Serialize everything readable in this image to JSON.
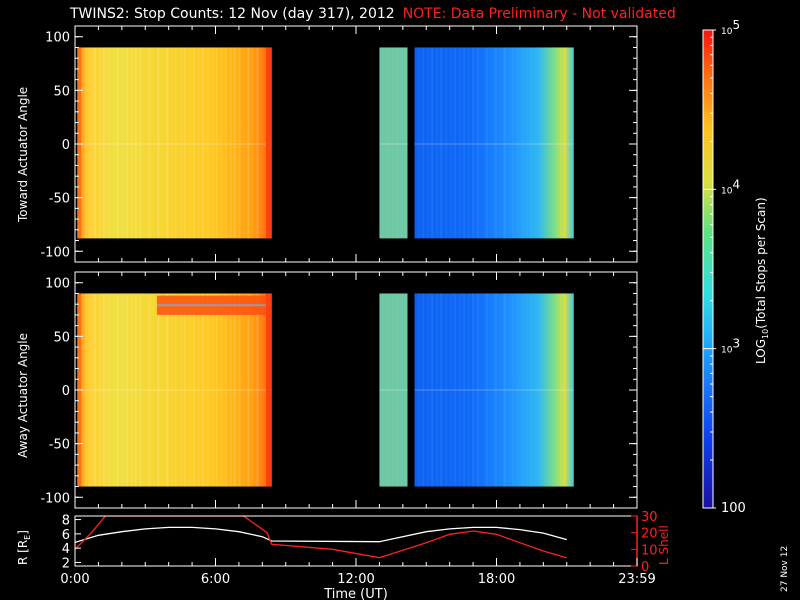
{
  "title": "TWINS2: Stop Counts: 12 Nov (day 317), 2012",
  "note": "NOTE: Data Preliminary - Not validated",
  "date_stamp": "27 Nov 12",
  "colors": {
    "background": "#000000",
    "axis": "#ffffff",
    "note": "#ff2020",
    "r_line": "#ffffff",
    "lshell_line": "#ff2020"
  },
  "chart_data": [
    {
      "type": "heatmap",
      "panel": "top",
      "ylabel": "Toward Actuator Angle",
      "ylim": [
        -110,
        110
      ],
      "yticks": [
        100,
        50,
        0,
        -50,
        -100
      ],
      "xlim": [
        0,
        24
      ],
      "angle_range": [
        -88,
        90
      ],
      "data_blocks": [
        {
          "t_start": 0.1,
          "t_end": 8.4,
          "log_value": 4.55
        },
        {
          "t_start": 13.0,
          "t_end": 14.2,
          "log_value": 3.7
        },
        {
          "t_start": 14.5,
          "t_end": 21.3,
          "log_value": 2.7
        }
      ]
    },
    {
      "type": "heatmap",
      "panel": "middle",
      "ylabel": "Away Actuator Angle",
      "ylim": [
        -110,
        110
      ],
      "yticks": [
        100,
        50,
        0,
        -50,
        -100
      ],
      "xlim": [
        0,
        24
      ],
      "angle_range": [
        -90,
        90
      ],
      "data_blocks": [
        {
          "t_start": 0.1,
          "t_end": 8.4,
          "log_value": 4.5
        },
        {
          "t_start": 13.0,
          "t_end": 14.2,
          "log_value": 3.7
        },
        {
          "t_start": 14.5,
          "t_end": 21.3,
          "log_value": 2.7
        }
      ]
    },
    {
      "type": "line",
      "panel": "bottom",
      "ylabel": "R [R",
      "ylabel_sub": "E",
      "ylabel_end": "]",
      "ylim": [
        1.5,
        8.5
      ],
      "yticks": [
        2,
        4,
        6,
        8
      ],
      "y2label": "L Shell",
      "y2lim": [
        0,
        30
      ],
      "y2ticks": [
        0,
        10,
        20,
        30
      ],
      "xlabel": "Time (UT)",
      "xlim": [
        0,
        24
      ],
      "xtick_labels": [
        "0:00",
        "6:00",
        "12:00",
        "18:00",
        "23:59"
      ],
      "xtick_values": [
        0,
        6,
        12,
        18,
        24
      ],
      "series": [
        {
          "axis": "left",
          "x": [
            0,
            1,
            2,
            3,
            4,
            5,
            6,
            7,
            8,
            8.4,
            13,
            15,
            16,
            17,
            18,
            19,
            20,
            21
          ],
          "values": [
            4.8,
            5.8,
            6.3,
            6.7,
            6.9,
            6.9,
            6.7,
            6.3,
            5.6,
            5.0,
            4.9,
            6.3,
            6.7,
            6.9,
            6.9,
            6.6,
            6.1,
            5.2
          ]
        },
        {
          "axis": "right",
          "x": [
            0,
            0.7,
            1.3,
            7.2,
            8.2,
            8.4,
            11,
            13,
            15,
            16,
            17,
            18,
            19,
            20,
            21
          ],
          "values": [
            10,
            20,
            30,
            30,
            20,
            13,
            10,
            5,
            14,
            19,
            21,
            19,
            14,
            9,
            5
          ]
        }
      ]
    }
  ],
  "colorbar": {
    "label": "LOG",
    "label_sub": "10",
    "label_end": "(Total Stops per Scan)",
    "range": [
      2,
      5
    ],
    "tick_labels": [
      {
        "value": 5,
        "base": "10",
        "exp": "5"
      },
      {
        "value": 4,
        "base": "10",
        "exp": "4"
      },
      {
        "value": 3,
        "base": "10",
        "exp": "3"
      },
      {
        "value": 2,
        "base": "100",
        "exp": ""
      }
    ]
  }
}
